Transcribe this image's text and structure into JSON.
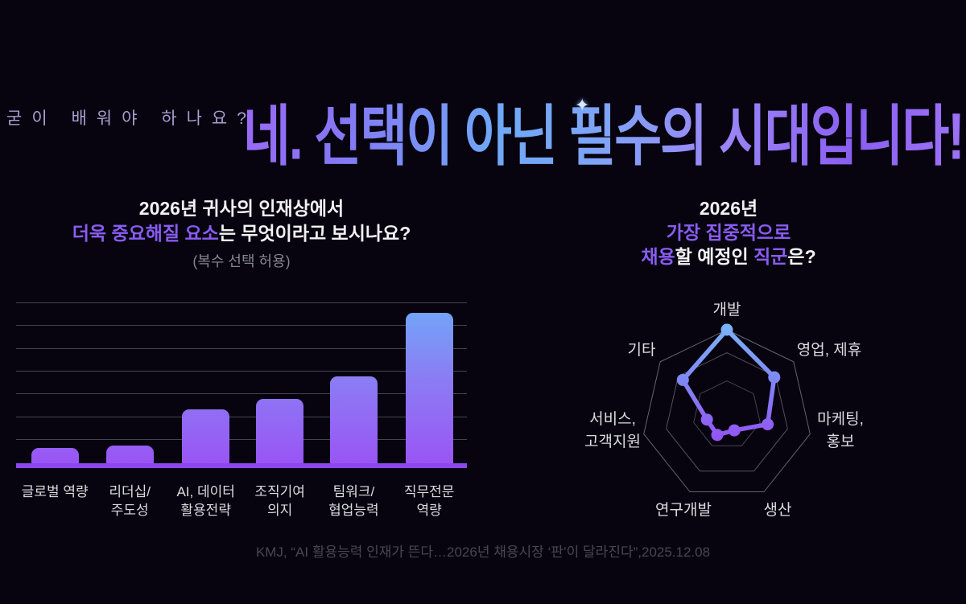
{
  "header": {
    "eyebrow": "굳이 배워야 하나요?",
    "title": "네. 선택이 아닌 필수의 시대입니다!",
    "sparkle_icon": "✦"
  },
  "left_chart": {
    "title_line1": "2026년 귀사의 인재상에서",
    "title_line2_highlight": "더욱 중요해질 요소",
    "title_line2_rest": "는 무엇이라고 보시나요?",
    "subtitle": "(복수 선택 허용)"
  },
  "right_chart": {
    "title_line1": "2026년",
    "title_line2": "가장 집중적으로",
    "title_line3_hl1": "채용",
    "title_line3_mid": "할 예정인 ",
    "title_line3_hl2": "직군",
    "title_line3_end": "은?"
  },
  "footer": {
    "citation": "KMJ, “AI 활용능력 인재가 뜬다…2026년 채용시장 ‘판’이 달라진다”,2025.12.08"
  },
  "colors": {
    "background": "#070410",
    "accent_purple": "#8b46ef",
    "accent_blue": "#70a9f8",
    "highlight_text": "#8a5cf2",
    "grid_line": "#45454d",
    "axis_label": "#dcdcdf",
    "citation": "#47474f",
    "title_gradient": [
      "#9a68f7",
      "#6fa9f7",
      "#8a5ff0"
    ]
  },
  "chart_data": [
    {
      "type": "bar",
      "title": "2026년 귀사의 인재상에서 더욱 중요해질 요소는 무엇이라고 보시나요?",
      "subtitle": "(복수 선택 허용)",
      "categories": [
        "글로벌 역량",
        "리더십/주도성",
        "AI, 데이터 활용전략",
        "조직기여 의지",
        "팀워크/협업능력",
        "직무전문 역량"
      ],
      "category_lines": [
        [
          "글로벌 역량"
        ],
        [
          "리더십/",
          "주도성"
        ],
        [
          "AI, 데이터",
          "활용전략"
        ],
        [
          "조직기여",
          "의지"
        ],
        [
          "팀워크/",
          "협업능력"
        ],
        [
          "직무전문",
          "역량"
        ]
      ],
      "values": [
        10,
        12,
        36,
        43,
        58,
        100
      ],
      "value_note": "relative bar heights as % of tallest bar; no numeric axis labels shown",
      "xlabel": "",
      "ylabel": "",
      "ylim": [
        0,
        107
      ],
      "grid": "horizontal, 7 lines",
      "legend": "none"
    },
    {
      "type": "radar",
      "title": "2026년 가장 집중적으로 채용할 예정인 직군은?",
      "categories": [
        "개발",
        "영업, 제휴",
        "마케팅, 홍보",
        "생산",
        "연구개발",
        "서비스, 고객지원",
        "기타"
      ],
      "category_lines": [
        [
          "개발"
        ],
        [
          "영업, 제휴"
        ],
        [
          "마케팅,",
          "홍보"
        ],
        [
          "생산"
        ],
        [
          "연구개발"
        ],
        [
          "서비스,",
          "고객지원"
        ],
        [
          "기타"
        ]
      ],
      "values": [
        100,
        71,
        49,
        20,
        26,
        24,
        66
      ],
      "scale_max": 100,
      "rings": [
        40,
        73,
        100
      ],
      "value_note": "relative radii as % of outer ring; no numeric labels shown",
      "legend": "none"
    }
  ]
}
